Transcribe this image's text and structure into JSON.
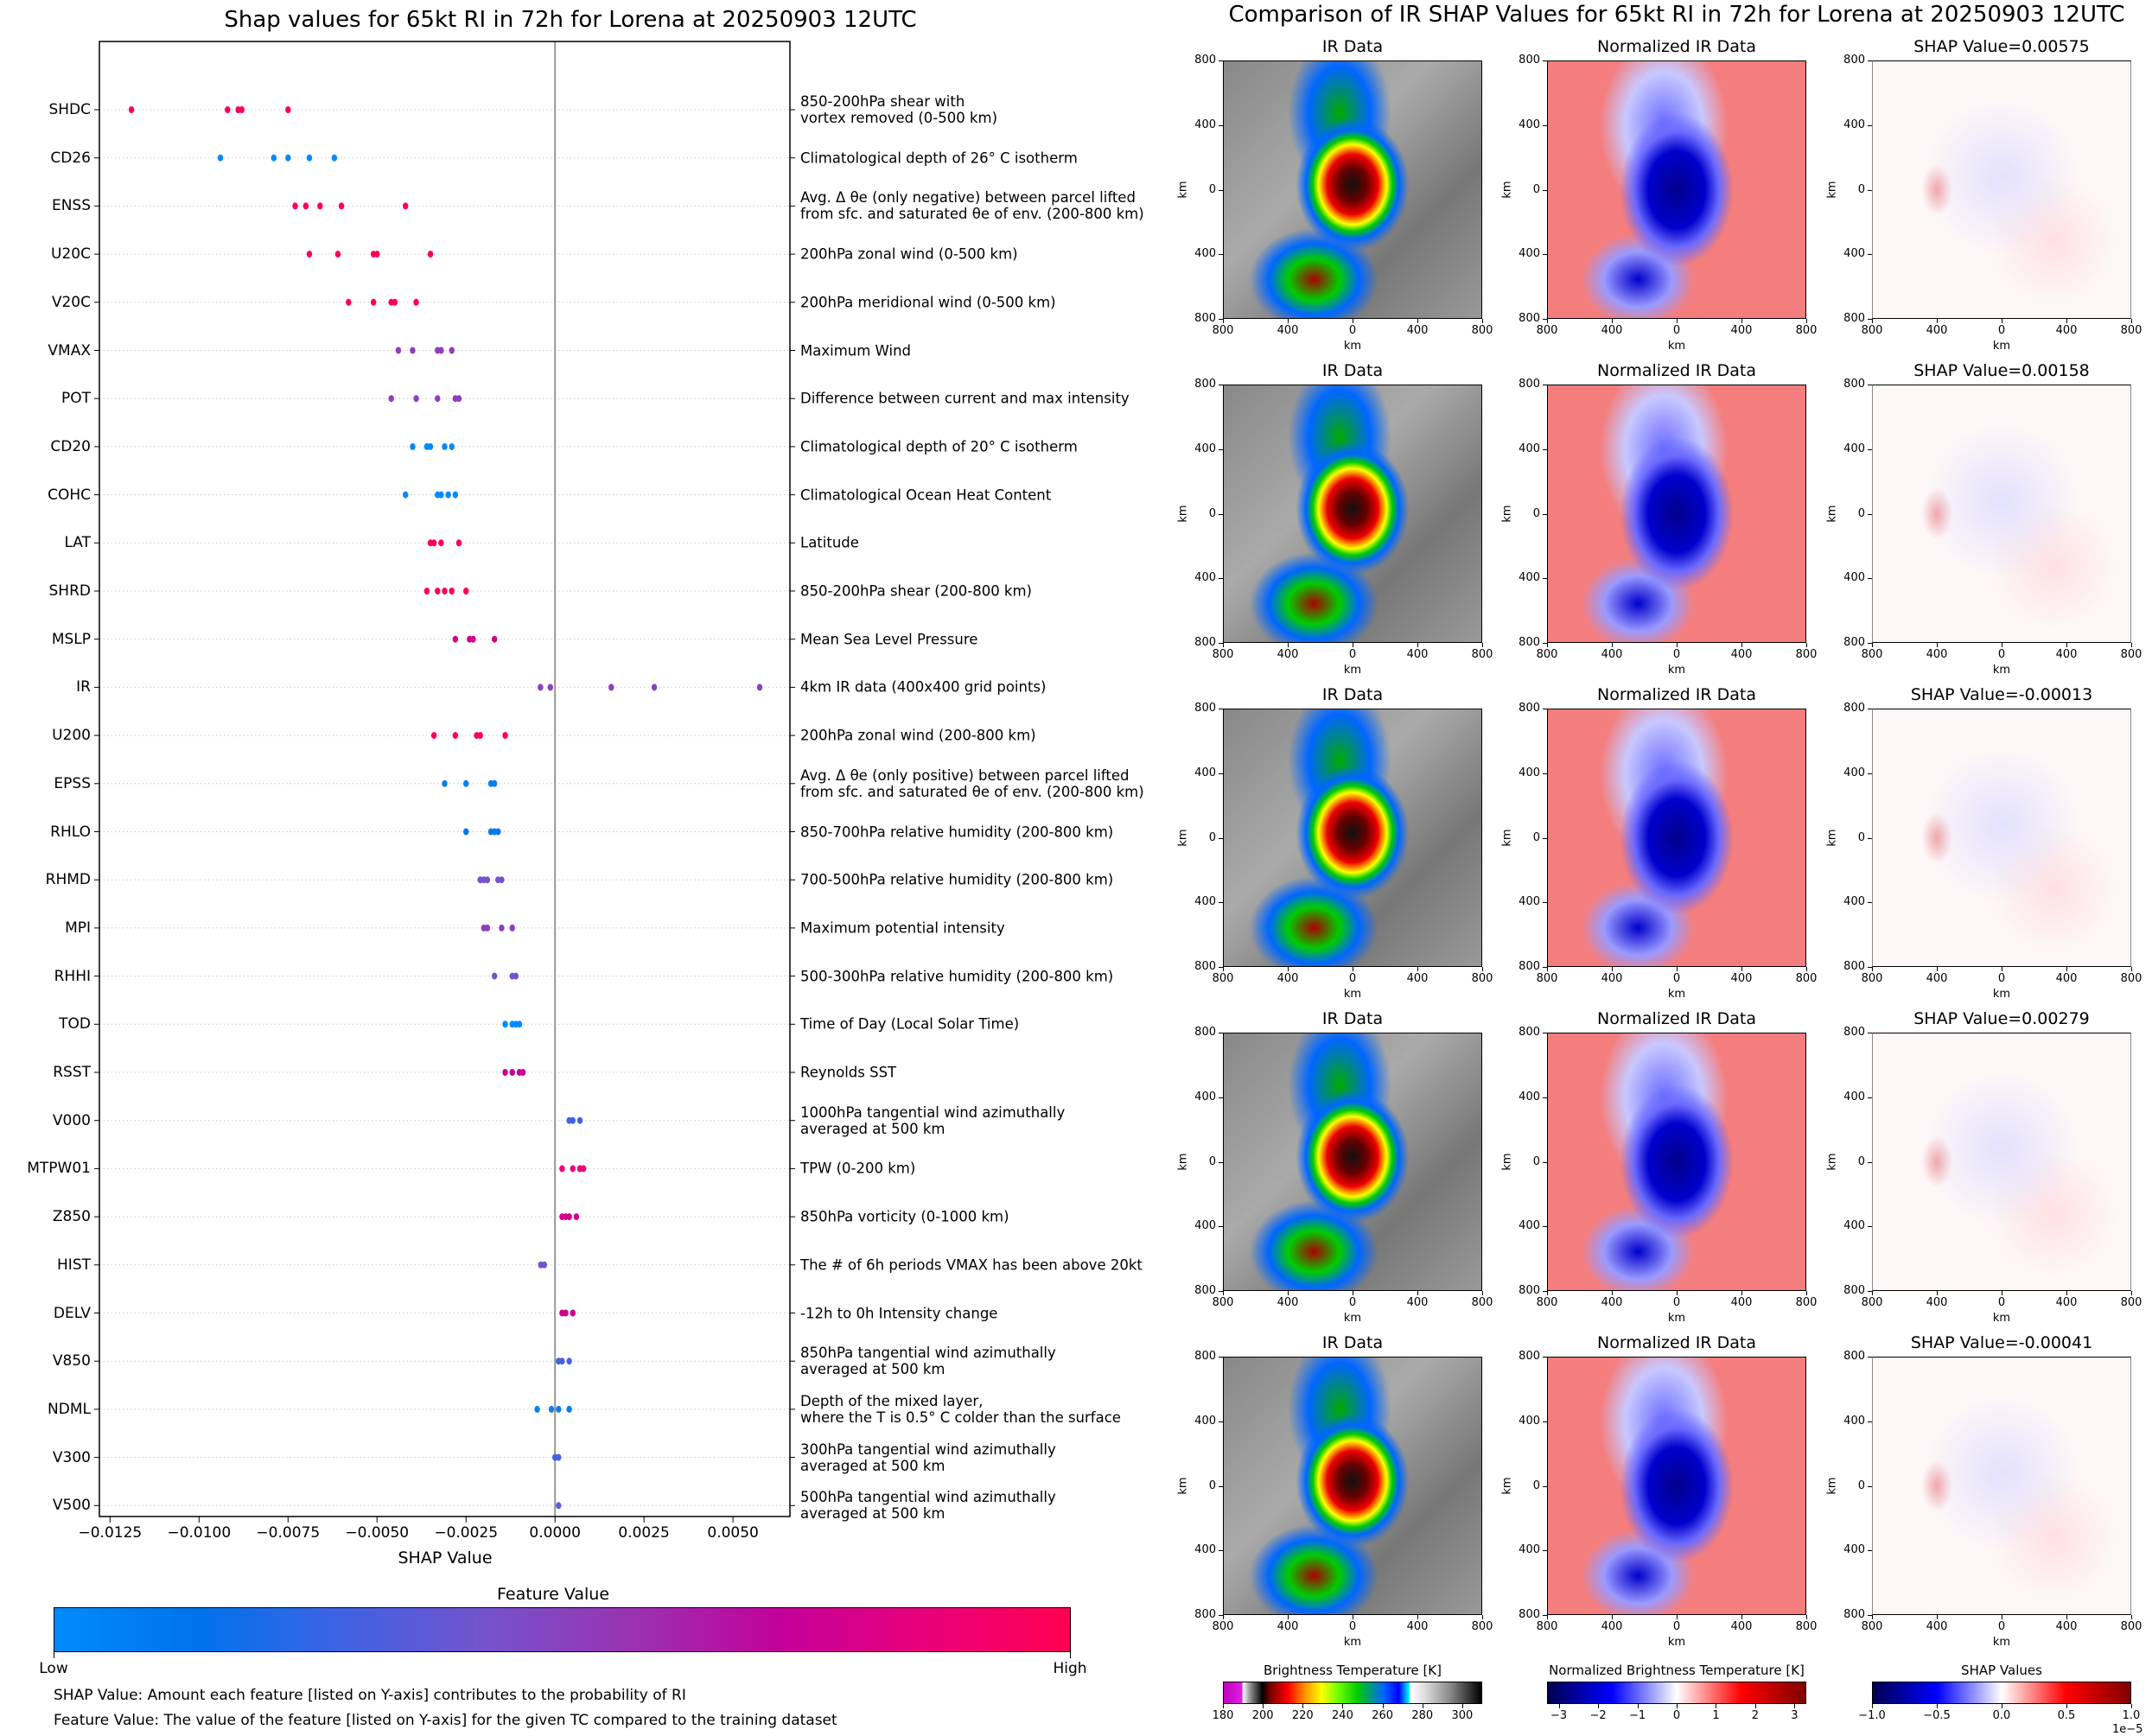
{
  "left": {
    "title": "Shap values for 65kt RI in 72h for Lorena at 20250903 12UTC",
    "xlabel": "SHAP Value",
    "colorbar": {
      "title": "Feature Value",
      "low_label": "Low",
      "high_label": "High",
      "colors": [
        "#008bfa",
        "#0072eb",
        "#4062e3",
        "#7652cc",
        "#9a32b0",
        "#c4009a",
        "#e8007a",
        "#ff0052"
      ]
    },
    "notes": [
      "SHAP Value: Amount each feature [listed on Y-axis] contributes to the probability of RI",
      "Feature Value: The value of the feature [listed on Y-axis] for the given TC compared to the training dataset"
    ]
  },
  "right": {
    "title": "Comparison of IR SHAP Values for 65kt RI in 72h for Lorena at 20250903 12UTC",
    "col_titles": [
      "IR Data",
      "Normalized IR Data"
    ],
    "shap_titles": [
      "SHAP Value=0.00575",
      "SHAP Value=0.00158",
      "SHAP Value=-0.00013",
      "SHAP Value=0.00279",
      "SHAP Value=-0.00041"
    ],
    "axis_label": "km",
    "ticks": [
      "800",
      "400",
      "0",
      "400",
      "800"
    ],
    "colorbars": [
      {
        "title": "Brightness Temperature [K]",
        "ticks": [
          "180",
          "200",
          "220",
          "240",
          "260",
          "280",
          "300"
        ],
        "range": [
          180,
          310
        ]
      },
      {
        "title": "Normalized Brightness Temperature [K]",
        "ticks": [
          "−3",
          "−2",
          "−1",
          "0",
          "1",
          "2",
          "3"
        ],
        "range": [
          -3.3,
          3.3
        ]
      },
      {
        "title": "SHAP Values",
        "ticks": [
          "−1.0",
          "−0.5",
          "0.0",
          "0.5",
          "1.0"
        ],
        "range": [
          -1.0,
          1.0
        ],
        "offset_label": "1e−5"
      }
    ]
  },
  "chart_data": {
    "type": "scatter",
    "title": "Shap values for 65kt RI in 72h for Lorena at 20250903 12UTC",
    "xlabel": "SHAP Value",
    "ylabel": "",
    "xlim": [
      -0.0128,
      0.0066
    ],
    "xticks": [
      -0.0125,
      -0.01,
      -0.0075,
      -0.005,
      -0.0025,
      0.0,
      0.0025,
      0.005
    ],
    "xtick_labels": [
      "−0.0125",
      "−0.0100",
      "−0.0075",
      "−0.0050",
      "−0.0025",
      "0.0000",
      "0.0025",
      "0.0050"
    ],
    "grid": "horizontal dotted",
    "features": [
      {
        "name": "SHDC",
        "desc": "850-200hPa shear with\nvortex removed (0-500 km)",
        "color": "#ff0052",
        "values": [
          -0.0119,
          -0.0092,
          -0.0089,
          -0.0088,
          -0.0075
        ]
      },
      {
        "name": "CD26",
        "desc": "Climatological depth of 26° C isotherm",
        "color": "#008bfa",
        "values": [
          -0.0094,
          -0.0079,
          -0.0075,
          -0.0069,
          -0.0062
        ]
      },
      {
        "name": "ENSS",
        "desc": "Avg. Δ θe (only negative) between parcel lifted\nfrom sfc. and saturated θe of env. (200-800 km)",
        "color": "#ff0052",
        "values": [
          -0.0073,
          -0.007,
          -0.0066,
          -0.006,
          -0.0042
        ]
      },
      {
        "name": "U20C",
        "desc": "200hPa zonal wind (0-500 km)",
        "color": "#ff0052",
        "values": [
          -0.0069,
          -0.0061,
          -0.0051,
          -0.005,
          -0.0035
        ]
      },
      {
        "name": "V20C",
        "desc": "200hPa meridional wind (0-500 km)",
        "color": "#ff0052",
        "values": [
          -0.0058,
          -0.0051,
          -0.0046,
          -0.0045,
          -0.0039
        ]
      },
      {
        "name": "VMAX",
        "desc": "Maximum Wind",
        "color": "#8e3ec0",
        "values": [
          -0.0044,
          -0.004,
          -0.0033,
          -0.0032,
          -0.0029
        ]
      },
      {
        "name": "POT",
        "desc": "Difference between current and max intensity",
        "color": "#8e3ec0",
        "values": [
          -0.0046,
          -0.0039,
          -0.0033,
          -0.0028,
          -0.0027
        ]
      },
      {
        "name": "CD20",
        "desc": "Climatological depth of 20° C isotherm",
        "color": "#008bfa",
        "values": [
          -0.004,
          -0.0036,
          -0.0035,
          -0.0031,
          -0.0029
        ]
      },
      {
        "name": "COHC",
        "desc": "Climatological Ocean Heat Content",
        "color": "#008bfa",
        "values": [
          -0.0042,
          -0.0033,
          -0.0032,
          -0.003,
          -0.0028
        ]
      },
      {
        "name": "LAT",
        "desc": "Latitude",
        "color": "#ff0052",
        "values": [
          -0.0035,
          -0.0034,
          -0.0032,
          -0.0027
        ]
      },
      {
        "name": "SHRD",
        "desc": "850-200hPa shear (200-800 km)",
        "color": "#ff0052",
        "values": [
          -0.0036,
          -0.0033,
          -0.0031,
          -0.0029,
          -0.0025
        ]
      },
      {
        "name": "MSLP",
        "desc": "Mean Sea Level Pressure",
        "color": "#d4008a",
        "values": [
          -0.0028,
          -0.0024,
          -0.0023,
          -0.0017
        ]
      },
      {
        "name": "IR",
        "desc": "4km IR data (400x400 grid points)",
        "color": "#8e3ec0",
        "values": [
          -0.00041,
          -0.00013,
          0.00158,
          0.00279,
          0.00575
        ]
      },
      {
        "name": "U200",
        "desc": "200hPa zonal wind (200-800 km)",
        "color": "#ff0052",
        "values": [
          -0.0034,
          -0.0028,
          -0.0022,
          -0.0021,
          -0.0014
        ]
      },
      {
        "name": "EPSS",
        "desc": "Avg. Δ θe (only positive) between parcel lifted\nfrom sfc. and saturated θe of env. (200-800 km)",
        "color": "#0a80f0",
        "values": [
          -0.0031,
          -0.0025,
          -0.0018,
          -0.0017
        ]
      },
      {
        "name": "RHLO",
        "desc": "850-700hPa relative humidity (200-800 km)",
        "color": "#0a78ea",
        "values": [
          -0.0025,
          -0.0018,
          -0.0017,
          -0.0016
        ]
      },
      {
        "name": "RHMD",
        "desc": "700-500hPa relative humidity (200-800 km)",
        "color": "#7652cc",
        "values": [
          -0.0021,
          -0.002,
          -0.0019,
          -0.0016,
          -0.0015
        ]
      },
      {
        "name": "MPI",
        "desc": "Maximum potential intensity",
        "color": "#8e3ec0",
        "values": [
          -0.002,
          -0.0019,
          -0.0015,
          -0.0012
        ]
      },
      {
        "name": "RHHI",
        "desc": "500-300hPa relative humidity (200-800 km)",
        "color": "#7652cc",
        "values": [
          -0.0017,
          -0.0012,
          -0.0011
        ]
      },
      {
        "name": "TOD",
        "desc": "Time of Day (Local Solar Time)",
        "color": "#008bfa",
        "values": [
          -0.0014,
          -0.0012,
          -0.0011,
          -0.001
        ]
      },
      {
        "name": "RSST",
        "desc": "Reynolds SST",
        "color": "#c4009a",
        "values": [
          -0.0014,
          -0.0012,
          -0.001,
          -0.0009
        ]
      },
      {
        "name": "V000",
        "desc": "1000hPa tangential wind azimuthally\naveraged at 500 km",
        "color": "#4062e3",
        "values": [
          0.0004,
          0.0005,
          0.0007
        ]
      },
      {
        "name": "MTPW01",
        "desc": "TPW (0-200 km)",
        "color": "#f0007a",
        "values": [
          0.0002,
          0.0005,
          0.0007,
          0.0008
        ]
      },
      {
        "name": "Z850",
        "desc": "850hPa vorticity (0-1000 km)",
        "color": "#d4008a",
        "values": [
          0.0002,
          0.0003,
          0.0004,
          0.0006
        ]
      },
      {
        "name": "HIST",
        "desc": "The # of 6h periods VMAX has been above 20kt",
        "color": "#7652cc",
        "values": [
          -0.0004,
          -0.0003
        ]
      },
      {
        "name": "DELV",
        "desc": "-12h to 0h Intensity change",
        "color": "#d4008a",
        "values": [
          0.0002,
          0.0003,
          0.0005
        ]
      },
      {
        "name": "V850",
        "desc": "850hPa tangential wind azimuthally\naveraged at 500 km",
        "color": "#4062e3",
        "values": [
          0.0001,
          0.0002,
          0.0004
        ]
      },
      {
        "name": "NDML",
        "desc": "Depth of the mixed layer,\nwhere the T is 0.5° C colder than the surface",
        "color": "#0a80f0",
        "values": [
          -0.0005,
          -0.0001,
          0.0001,
          0.0004
        ]
      },
      {
        "name": "V300",
        "desc": "300hPa tangential wind azimuthally\naveraged at 500 km",
        "color": "#4062e3",
        "values": [
          0.0,
          0.0001
        ]
      },
      {
        "name": "V500",
        "desc": "500hPa tangential wind azimuthally\naveraged at 500 km",
        "color": "#5b5fd8",
        "values": [
          0.0001
        ]
      }
    ]
  }
}
